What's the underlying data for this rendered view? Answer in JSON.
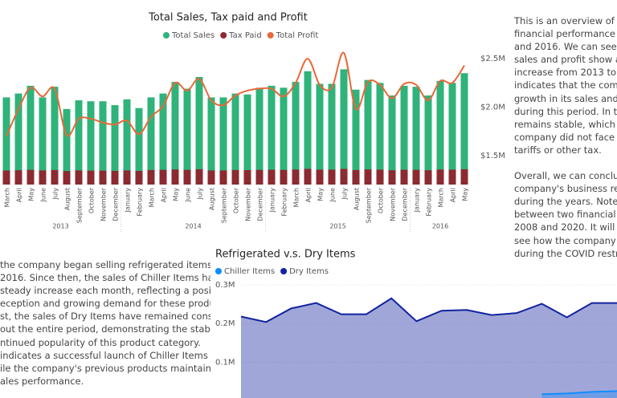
{
  "chart_data": [
    {
      "type": "bar_line",
      "title": "Total Sales, Tax paid and Profit",
      "categories": [
        "March",
        "April",
        "May",
        "June",
        "July",
        "August",
        "September",
        "October",
        "November",
        "December",
        "January",
        "February",
        "March",
        "April",
        "May",
        "June",
        "July",
        "August",
        "September",
        "October",
        "November",
        "December",
        "January",
        "February",
        "March",
        "April",
        "May",
        "June",
        "July",
        "August",
        "September",
        "October",
        "November",
        "December",
        "January",
        "February",
        "March",
        "April",
        "May"
      ],
      "year_groups": [
        {
          "label": "2013",
          "months": 10
        },
        {
          "label": "2014",
          "months": 12
        },
        {
          "label": "2015",
          "months": 12
        },
        {
          "label": "2016",
          "months": 5
        }
      ],
      "series": [
        {
          "name": "Total Sales",
          "color": "#2fb37a",
          "kind": "bar",
          "values": [
            2100000,
            2140000,
            2220000,
            2100000,
            2210000,
            1980000,
            2070000,
            2060000,
            2060000,
            2020000,
            2080000,
            1990000,
            2100000,
            2140000,
            2260000,
            2190000,
            2310000,
            2100000,
            2100000,
            2140000,
            2130000,
            2200000,
            2220000,
            2200000,
            2260000,
            2370000,
            2240000,
            2240000,
            2390000,
            2180000,
            2280000,
            2250000,
            2120000,
            2220000,
            2210000,
            2120000,
            2270000,
            2250000,
            2350000
          ]
        },
        {
          "name": "Tax Paid",
          "color": "#8b2b31",
          "kind": "bar",
          "values": [
            1345000,
            1348000,
            1352000,
            1346000,
            1350000,
            1340000,
            1346000,
            1344000,
            1344000,
            1342000,
            1346000,
            1341000,
            1350000,
            1352000,
            1356000,
            1352000,
            1358000,
            1346000,
            1346000,
            1350000,
            1349000,
            1352000,
            1353000,
            1351000,
            1355000,
            1362000,
            1354000,
            1354000,
            1362000,
            1350000,
            1356000,
            1354000,
            1348000,
            1353000,
            1352000,
            1348000,
            1355000,
            1354000,
            1358000
          ]
        },
        {
          "name": "Total Profit",
          "color": "#e8693a",
          "kind": "line",
          "values": [
            1700000,
            1980000,
            2200000,
            2110000,
            2190000,
            1710000,
            1880000,
            1880000,
            1840000,
            1820000,
            1860000,
            1720000,
            1900000,
            2010000,
            2250000,
            2170000,
            2290000,
            2070000,
            2020000,
            2120000,
            2170000,
            2190000,
            2190000,
            2110000,
            2250000,
            2500000,
            2230000,
            2200000,
            2560000,
            1980000,
            2260000,
            2230000,
            2090000,
            2240000,
            2230000,
            2070000,
            2270000,
            2250000,
            2430000
          ]
        }
      ],
      "ylim": [
        1200000,
        2650000
      ],
      "yticks": [
        {
          "value": 1500000,
          "label": "$1.5M"
        },
        {
          "value": 2000000,
          "label": "$2.0M"
        },
        {
          "value": 2500000,
          "label": "$2.5M"
        }
      ]
    },
    {
      "type": "area",
      "title": "Refrigerated v.s. Dry Items",
      "categories": [
        null,
        null,
        null,
        null,
        null,
        null,
        null,
        null,
        null,
        null,
        null,
        null,
        null,
        null,
        null,
        null
      ],
      "series": [
        {
          "name": "Chiller Items",
          "color": "#118dff",
          "values": [
            null,
            null,
            null,
            null,
            null,
            null,
            null,
            null,
            null,
            null,
            null,
            null,
            18000,
            20000,
            24000,
            26000
          ]
        },
        {
          "name": "Dry Items",
          "color": "#12239e",
          "values": [
            218000,
            204000,
            239000,
            253000,
            224000,
            224000,
            265000,
            206000,
            233000,
            235000,
            222000,
            227000,
            251000,
            216000,
            253000,
            253000
          ]
        }
      ],
      "ylim": [
        0,
        310000
      ],
      "yticks": [
        {
          "value": 100000,
          "label": "0.1M"
        },
        {
          "value": 200000,
          "label": "0.2M"
        },
        {
          "value": 300000,
          "label": "0.3M"
        }
      ]
    }
  ],
  "texts": {
    "overview": [
      [
        "This is an overview of the c",
        "financial performance betw",
        "and 2016. We can see that",
        "sales and profit show a slo",
        "increase from 2013 to 2016",
        "indicates that the company",
        "growth in its sales and prof",
        "during this period. In terms",
        "remains stable, which mea",
        "company did not face majo",
        "tariffs or other tax."
      ],
      [
        "Overall, we can conclude t",
        "company's business remain",
        "during the years. Note tha",
        "between two financial crise",
        "2008 and 2020. It will be in",
        "see how the company perf",
        "during the COVID restrictio"
      ]
    ],
    "refrigerated": [
      [
        "the company began selling refrigerated items in",
        "2016. Since then, the sales of Chiller Items have",
        "steady increase each month, reflecting a positive",
        "eception and growing demand for these products.",
        "st, the sales of Dry Items have remained consistent",
        "out the entire period, demonstrating the stability",
        "ntinued popularity of this product category.",
        "indicates a successful launch of Chiller Items in",
        "ile the company's previous products maintained",
        "ales performance."
      ]
    ]
  }
}
